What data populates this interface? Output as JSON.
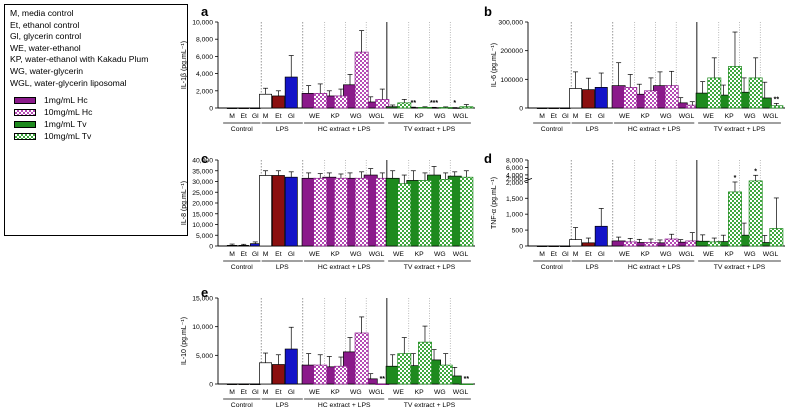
{
  "legend": {
    "abbreviations": [
      "M, media control",
      "Et, ethanol control",
      "Gl, glycerin control",
      "WE, water-ethanol",
      "KP, water-ethanol with Kakadu Plum",
      "WG, water-glycerin",
      "WGL, water-glycerin liposomal"
    ],
    "series": [
      {
        "name": "1mg/mL Hc",
        "color": "#8b1a8b",
        "pattern": "solid"
      },
      {
        "name": "10mg/mL Hc",
        "color": "#c75cc7",
        "pattern": "check"
      },
      {
        "name": "1mg/mL Tv",
        "color": "#1e8a1e",
        "pattern": "solid"
      },
      {
        "name": "10mg/mL Tv",
        "color": "#58b858",
        "pattern": "check"
      }
    ]
  },
  "chart_data": [
    {
      "panel": "a",
      "type": "bar",
      "ylabel": "IL-1β (pg.mL⁻¹)",
      "yticks": [
        "0",
        "2,000",
        "4,000",
        "6,000",
        "8,000",
        "10,000"
      ],
      "ylim": [
        0,
        10000
      ],
      "groups": [
        "Control",
        "LPS",
        "HC extract + LPS",
        "TV extract + LPS"
      ],
      "controls": {
        "categories": [
          "M",
          "Et",
          "Gl"
        ],
        "values": [
          0,
          0,
          0
        ],
        "errors": [
          0,
          0,
          0
        ]
      },
      "lps": {
        "categories": [
          "M",
          "Et",
          "Gl"
        ],
        "values": [
          1600,
          1400,
          3600
        ],
        "errors": [
          700,
          600,
          2500
        ]
      },
      "extract_categories": [
        "WE",
        "KP",
        "WG",
        "WGL"
      ],
      "series": [
        {
          "name": "1mg/mL Hc",
          "values": [
            1700,
            1400,
            2700,
            700
          ],
          "errors": [
            900,
            600,
            1200,
            600
          ]
        },
        {
          "name": "10mg/mL Hc",
          "values": [
            1700,
            1400,
            6500,
            1000
          ],
          "errors": [
            1100,
            800,
            2500,
            1200
          ]
        },
        {
          "name": "1mg/mL Tv",
          "values": [
            150,
            50,
            40,
            20
          ],
          "errors": [
            200,
            50,
            40,
            30
          ]
        },
        {
          "name": "10mg/mL Tv",
          "values": [
            600,
            70,
            60,
            150
          ],
          "errors": [
            400,
            70,
            70,
            250
          ]
        }
      ],
      "annotations": [
        {
          "group": "TV",
          "bar": "KP-1mg/mL Tv",
          "text": "**"
        },
        {
          "group": "TV",
          "bar": "WG-1mg/mL Tv",
          "text": "***"
        },
        {
          "group": "TV",
          "bar": "WGL-1mg/mL Tv",
          "text": "*"
        }
      ]
    },
    {
      "panel": "b",
      "type": "bar",
      "ylabel": "IL-6 (pg.mL⁻¹)",
      "yticks": [
        "0",
        "100000",
        "200000",
        "300,000"
      ],
      "ylim": [
        0,
        300000
      ],
      "groups": [
        "Control",
        "LPS",
        "HC extract + LPS",
        "TV extract + LPS"
      ],
      "controls": {
        "categories": [
          "M",
          "Et",
          "Gl"
        ],
        "values": [
          0,
          0,
          0
        ],
        "errors": [
          0,
          0,
          0
        ]
      },
      "lps": {
        "categories": [
          "M",
          "Et",
          "Gl"
        ],
        "values": [
          68000,
          64000,
          72000
        ],
        "errors": [
          58000,
          40000,
          50000
        ]
      },
      "extract_categories": [
        "WE",
        "KP",
        "WG",
        "WGL"
      ],
      "series": [
        {
          "name": "1mg/mL Hc",
          "values": [
            78000,
            48000,
            78000,
            18000
          ],
          "errors": [
            80000,
            35000,
            48000,
            18000
          ]
        },
        {
          "name": "10mg/mL Hc",
          "values": [
            72000,
            60000,
            78000,
            10000
          ],
          "errors": [
            45000,
            45000,
            50000,
            12000
          ]
        },
        {
          "name": "1mg/mL Tv",
          "values": [
            52000,
            45000,
            55000,
            35000
          ],
          "errors": [
            40000,
            35000,
            50000,
            55000
          ]
        },
        {
          "name": "10mg/mL Tv",
          "values": [
            105000,
            145000,
            105000,
            8000
          ],
          "errors": [
            70000,
            120000,
            70000,
            8000
          ]
        }
      ],
      "annotations": [
        {
          "group": "TV",
          "bar": "WGL-10mg/mL Tv",
          "text": "**"
        }
      ]
    },
    {
      "panel": "c",
      "type": "bar",
      "ylabel": "IL-8 (pg.mL⁻¹)",
      "yticks": [
        "0",
        "5,000",
        "10,000",
        "15,000",
        "20,000",
        "25,000",
        "30,000",
        "35,000",
        "40,000"
      ],
      "ylim": [
        0,
        40000
      ],
      "groups": [
        "Control",
        "LPS",
        "HC extract + LPS",
        "TV extract + LPS"
      ],
      "controls": {
        "categories": [
          "M",
          "Et",
          "Gl"
        ],
        "values": [
          300,
          300,
          1100
        ],
        "errors": [
          600,
          500,
          800
        ]
      },
      "lps": {
        "categories": [
          "M",
          "Et",
          "Gl"
        ],
        "values": [
          32800,
          32800,
          32000
        ],
        "errors": [
          2200,
          2200,
          2500
        ]
      },
      "extract_categories": [
        "WE",
        "KP",
        "WG",
        "WGL"
      ],
      "series": [
        {
          "name": "1mg/mL Hc",
          "values": [
            31500,
            32000,
            31500,
            33000
          ],
          "errors": [
            2500,
            2000,
            2500,
            3000
          ]
        },
        {
          "name": "10mg/mL Hc",
          "values": [
            31500,
            31500,
            31500,
            31500
          ],
          "errors": [
            2200,
            2000,
            3000,
            2500
          ]
        },
        {
          "name": "1mg/mL Tv",
          "values": [
            31500,
            30500,
            33000,
            32500
          ],
          "errors": [
            3500,
            4500,
            4000,
            2000
          ]
        },
        {
          "name": "10mg/mL Tv",
          "values": [
            29000,
            30500,
            31000,
            32000
          ],
          "errors": [
            4000,
            3500,
            3000,
            3000
          ]
        }
      ],
      "annotations": []
    },
    {
      "panel": "d",
      "type": "bar",
      "ylabel": "TNF-α (pg.mL⁻¹)",
      "yticks": [
        "0",
        "500",
        "1,000",
        "1,500",
        "2,000",
        "2,000",
        "4,000",
        "6,000",
        "8,000"
      ],
      "ylim": [
        0,
        8000
      ],
      "axis_break": [
        2000,
        2000
      ],
      "groups": [
        "Control",
        "LPS",
        "HC extract + LPS",
        "TV extract + LPS"
      ],
      "controls": {
        "categories": [
          "M",
          "Et",
          "Gl"
        ],
        "values": [
          0,
          0,
          0
        ],
        "errors": [
          0,
          0,
          0
        ]
      },
      "lps": {
        "categories": [
          "M",
          "Et",
          "Gl"
        ],
        "values": [
          200,
          100,
          620
        ],
        "errors": [
          380,
          150,
          560
        ]
      },
      "extract_categories": [
        "WE",
        "KP",
        "WG",
        "WGL"
      ],
      "series": [
        {
          "name": "1mg/mL Hc",
          "values": [
            160,
            110,
            100,
            120
          ],
          "errors": [
            120,
            100,
            90,
            80
          ]
        },
        {
          "name": "10mg/mL Hc",
          "values": [
            130,
            110,
            220,
            160
          ],
          "errors": [
            110,
            110,
            150,
            260
          ]
        },
        {
          "name": "1mg/mL Tv",
          "values": [
            150,
            140,
            340,
            110
          ],
          "errors": [
            200,
            200,
            380,
            220
          ]
        },
        {
          "name": "10mg/mL Tv",
          "values": [
            130,
            1700,
            2400,
            550
          ],
          "errors": [
            120,
            400,
            1500,
            960
          ]
        }
      ],
      "annotations": [
        {
          "group": "TV",
          "bar": "KP-10mg/mL Tv",
          "text": "*"
        },
        {
          "group": "TV",
          "bar": "WG-10mg/mL Tv",
          "text": "*"
        }
      ]
    },
    {
      "panel": "e",
      "type": "bar",
      "ylabel": "IL-10 (pg.mL⁻¹)",
      "yticks": [
        "0",
        "5,000",
        "10,000",
        "15,000"
      ],
      "ylim": [
        0,
        15000
      ],
      "groups": [
        "Control",
        "LPS",
        "HC extract + LPS",
        "TV extract + LPS"
      ],
      "controls": {
        "categories": [
          "M",
          "Et",
          "Gl"
        ],
        "values": [
          0,
          0,
          0
        ],
        "errors": [
          0,
          0,
          0
        ]
      },
      "lps": {
        "categories": [
          "M",
          "Et",
          "Gl"
        ],
        "values": [
          3700,
          3400,
          6100
        ],
        "errors": [
          1700,
          1700,
          3800
        ]
      },
      "extract_categories": [
        "WE",
        "KP",
        "WG",
        "WGL"
      ],
      "series": [
        {
          "name": "1mg/mL Hc",
          "values": [
            3300,
            3000,
            5600,
            900
          ],
          "errors": [
            2000,
            1800,
            2500,
            900
          ]
        },
        {
          "name": "10mg/mL Hc",
          "values": [
            3300,
            3100,
            8900,
            0
          ],
          "errors": [
            1800,
            1600,
            2800,
            0
          ]
        },
        {
          "name": "1mg/mL Tv",
          "values": [
            3100,
            3200,
            4200,
            1400
          ],
          "errors": [
            2000,
            2100,
            1800,
            1500
          ]
        },
        {
          "name": "10mg/mL Tv",
          "values": [
            5300,
            7300,
            3300,
            0
          ],
          "errors": [
            2800,
            2800,
            2000,
            0
          ]
        }
      ],
      "annotations": [
        {
          "group": "HC",
          "bar": "WGL-10mg/mL Hc",
          "text": "**"
        },
        {
          "group": "TV",
          "bar": "WGL-10mg/mL Tv",
          "text": "**"
        }
      ]
    }
  ]
}
